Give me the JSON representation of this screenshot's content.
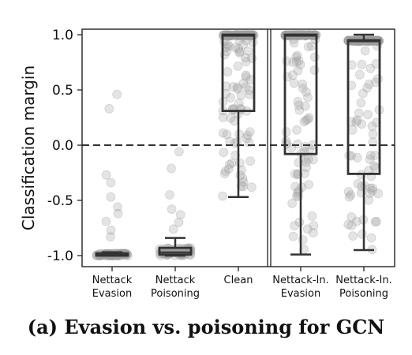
{
  "caption": "(a) Evasion vs. poisoning for GCN",
  "chart_data": {
    "type": "box",
    "title": "",
    "xlabel": "",
    "ylabel": "Classification margin",
    "ylim": [
      -1.1,
      1.05
    ],
    "yticks": [
      1.0,
      0.5,
      0.0,
      -0.5,
      -1.0
    ],
    "ytick_labels": [
      "1.0",
      "0.5",
      "0.0",
      "-0.5",
      "-1.0"
    ],
    "reference_line": {
      "y": 0.0,
      "style": "dashed"
    },
    "separator_after_category": 3,
    "categories": [
      {
        "line1": "Nettack",
        "line2": "Evasion"
      },
      {
        "line1": "Nettack",
        "line2": "Poisoning"
      },
      {
        "line1": "Clean",
        "line2": ""
      },
      {
        "line1": "Nettack-In.",
        "line2": "Evasion"
      },
      {
        "line1": "Nettack-In.",
        "line2": "Poisoning"
      }
    ],
    "boxes": [
      {
        "whisker_low": -1.0,
        "q1": -1.0,
        "median": -0.99,
        "q3": -0.98,
        "whisker_high": -0.97
      },
      {
        "whisker_low": -1.0,
        "q1": -0.99,
        "median": -0.97,
        "q3": -0.93,
        "whisker_high": -0.84
      },
      {
        "whisker_low": -0.47,
        "q1": 0.31,
        "median": 0.99,
        "q3": 1.0,
        "whisker_high": 1.0
      },
      {
        "whisker_low": -0.99,
        "q1": -0.08,
        "median": 0.99,
        "q3": 1.0,
        "whisker_high": 1.0
      },
      {
        "whisker_low": -0.95,
        "q1": -0.26,
        "median": 0.94,
        "q3": 0.95,
        "whisker_high": 1.0
      }
    ],
    "outliers": [
      [
        0.46,
        0.33,
        -0.27,
        -0.34,
        -0.47,
        -0.56,
        -0.62,
        -0.69,
        -0.77,
        -0.83
      ],
      [
        -0.06,
        -0.21,
        -0.45,
        -0.58,
        -0.63,
        -0.7,
        -0.76
      ],
      [],
      [],
      []
    ],
    "colors": {
      "points": "#9e9e9e",
      "box": "#333333",
      "zero_line": "#333333"
    }
  }
}
